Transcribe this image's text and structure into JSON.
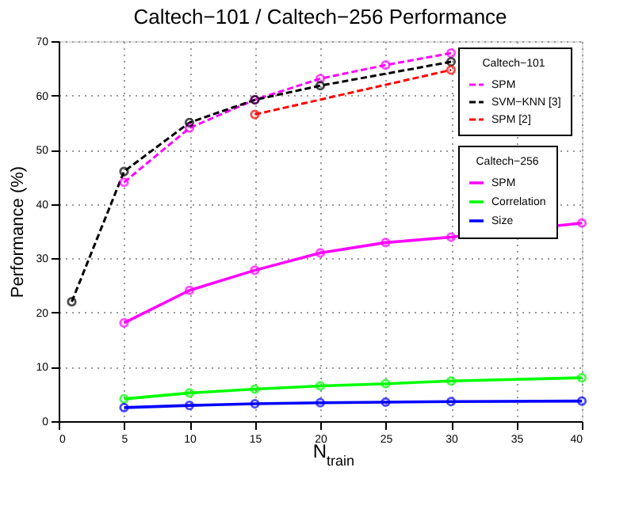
{
  "chart_data": {
    "type": "line",
    "title": "Caltech−101 / Caltech−256  Performance",
    "xlabel": "N$_{train}$",
    "ylabel": "Performance (%)",
    "legend_title": [
      "Caltech−101",
      "Caltech−256"
    ],
    "series": [
      {
        "name": "SPM",
        "color": "#ff00ff",
        "line_style": "dashed",
        "x": [
          5,
          10,
          15,
          20,
          25,
          30
        ],
        "values": [
          44,
          54,
          59.2,
          63.1,
          65.6,
          67.8
        ]
      },
      {
        "name": "SVM−KNN [3]",
        "color": "#000000",
        "line_style": "dashed",
        "x": [
          1,
          5,
          10,
          15,
          20,
          30
        ],
        "values": [
          22,
          46,
          55,
          59.2,
          61.8,
          66.2
        ]
      },
      {
        "name": "SPM [2]",
        "color": "#ff0000",
        "line_style": "dashed",
        "x": [
          15,
          30
        ],
        "values": [
          56.5,
          64.7
        ]
      },
      {
        "name": "SPM",
        "color": "#ff00ff",
        "line_style": "solid",
        "x": [
          5,
          10,
          15,
          20,
          25,
          30,
          40
        ],
        "values": [
          18.1,
          24.1,
          27.8,
          31.0,
          32.9,
          33.9,
          36.5
        ]
      },
      {
        "name": "Correlation",
        "color": "#00ff00",
        "line_style": "solid",
        "x": [
          5,
          10,
          15,
          20,
          25,
          30,
          40
        ],
        "values": [
          4.1,
          5.2,
          5.9,
          6.5,
          6.9,
          7.4,
          8.0
        ]
      },
      {
        "name": "Size",
        "color": "#0000ff",
        "line_style": "solid",
        "x": [
          5,
          10,
          15,
          20,
          25,
          30,
          40
        ],
        "values": [
          2.5,
          2.9,
          3.2,
          3.4,
          3.5,
          3.6,
          3.7
        ]
      }
    ],
    "xlim": [
      0,
      40
    ],
    "xticks": [
      0,
      5,
      10,
      15,
      20,
      25,
      30,
      35,
      40
    ],
    "ylim": [
      0,
      70
    ],
    "yticks": [
      0,
      10,
      20,
      30,
      40,
      50,
      60,
      70
    ],
    "grid": true,
    "legend": "top right",
    "marker": "circle"
  }
}
